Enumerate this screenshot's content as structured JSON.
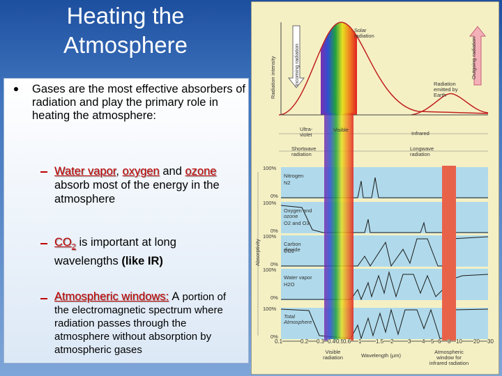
{
  "title": "Heating the Atmosphere",
  "bullet": "Gases are the most effective absorbers of radiation and play the primary role in heating the atmosphere:",
  "items": [
    {
      "parts": [
        "Water vapor",
        ",",
        "oxygen",
        "and",
        "ozone",
        "absorb most of the energy in the atmosphere"
      ]
    },
    {
      "parts": [
        "CO",
        "2",
        "is important at long wavelengths",
        "(like IR)"
      ]
    },
    {
      "parts": [
        "Atmospheric windows:",
        "A",
        "portion of the electromagnetic spectrum where radiation passes through the atmosphere without absorption by atmospheric gases"
      ]
    }
  ],
  "figure": {
    "solar": "Solar radiation",
    "incoming": "Incoming radiation",
    "intensity": "Radiation intensity",
    "outgoing": "Outgoing radiation",
    "earth": "Radiation emitted by Earth",
    "uv": "Ultra-violet",
    "visible": "Visible",
    "infrared": "Infrared",
    "shortwave": "Shortwave radiation",
    "longwave": "Longwave radiation",
    "absorptivity": "Absorptivity",
    "full": "100%",
    "zero": "0%",
    "panels": [
      {
        "name": "Nitrogen",
        "formula": "N2"
      },
      {
        "name": "Oxygen and ozone",
        "formula": "O2 and O3"
      },
      {
        "name": "Carbon dioxide",
        "formula": "CO2"
      },
      {
        "name": "Water vapor",
        "formula": "H2O"
      },
      {
        "name": "Total Atmosphere",
        "formula": ""
      }
    ],
    "ticks": [
      "0.1",
      "0.2",
      "0.3",
      "0.4",
      "0.5",
      "0.6",
      "1",
      "1.5",
      "2",
      "3",
      "4",
      "5",
      "6",
      "8",
      "10",
      "20",
      "30"
    ],
    "visible_radiation": "Visible radiation",
    "wavelength": "Wavelength (μm)",
    "window": "Atmospheric window for infrared radiation"
  }
}
